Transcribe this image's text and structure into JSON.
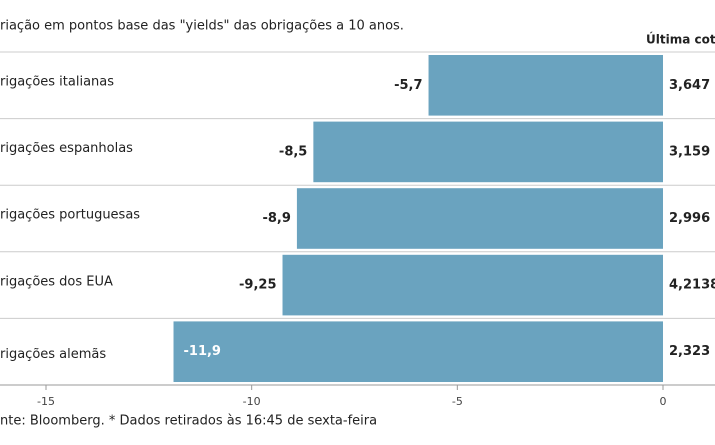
{
  "chart_data": {
    "type": "bar",
    "orientation": "horizontal",
    "title": "riação em pontos base das \"yields\" das obrigações a 10 anos.",
    "categories": [
      "rigações italianas",
      "rigações espanholas",
      "rigações portuguesas",
      "rigações dos EUA",
      "rigações alemãs"
    ],
    "values": [
      -5.7,
      -8.5,
      -8.9,
      -9.25,
      -11.9
    ],
    "value_labels": [
      "-5,7",
      "-8,5",
      "-8,9",
      "-9,25",
      "-11,9"
    ],
    "color": "#6aa3bf",
    "xlim": [
      -15,
      0
    ],
    "xticks": [
      -15,
      -10,
      -5,
      0
    ],
    "quotes_title": "Última cotaç",
    "quotes": [
      "3,647",
      "3,159",
      "2,996",
      "4,2138",
      "2,323"
    ],
    "source": "nte: Bloomberg.  * Dados retirados às 16:45 de sexta-feira"
  }
}
